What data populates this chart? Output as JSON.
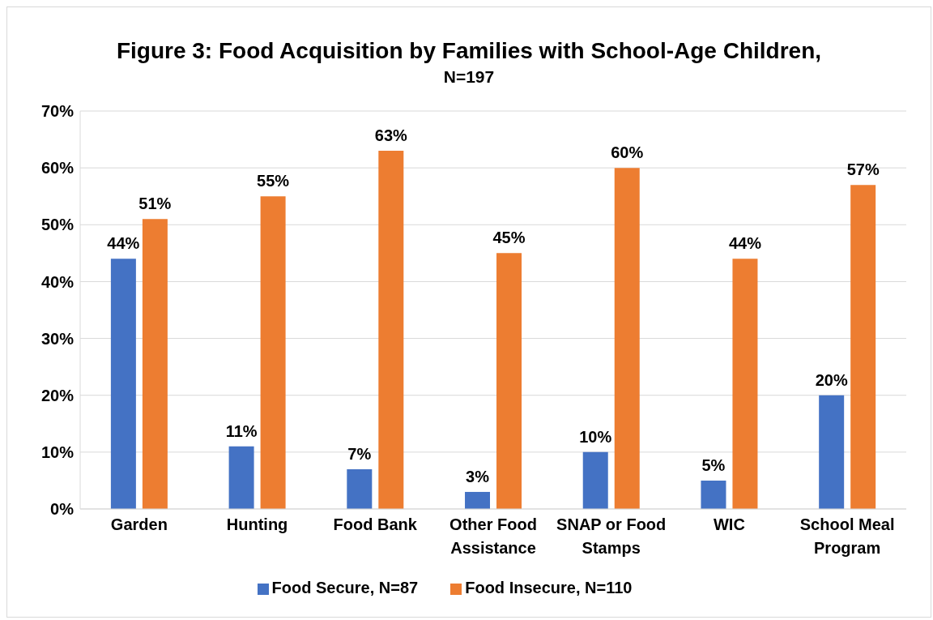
{
  "chart_data": {
    "type": "bar",
    "title": "Figure 3: Food Acquisition by Families with School-Age Children,",
    "subtitle": "N=197",
    "categories": [
      "Garden",
      "Hunting",
      "Food Bank",
      "Other Food Assistance",
      "SNAP or Food Stamps",
      "WIC",
      "School Meal Program"
    ],
    "series": [
      {
        "name": "Food Secure, N=87",
        "color": "#4472c4",
        "values": [
          44,
          11,
          7,
          3,
          10,
          5,
          20
        ],
        "value_labels": [
          "44%",
          "11%",
          "7%",
          "3%",
          "10%",
          "5%",
          "20%"
        ]
      },
      {
        "name": "Food Insecure, N=110",
        "color": "#ed7d31",
        "values": [
          51,
          55,
          63,
          45,
          60,
          44,
          57
        ],
        "value_labels": [
          "51%",
          "55%",
          "63%",
          "45%",
          "60%",
          "44%",
          "57%"
        ]
      }
    ],
    "ylim": [
      0,
      70
    ],
    "yticks": [
      {
        "value": 0,
        "label": "0%"
      },
      {
        "value": 10,
        "label": "10%"
      },
      {
        "value": 20,
        "label": "20%"
      },
      {
        "value": 30,
        "label": "30%"
      },
      {
        "value": 40,
        "label": "40%"
      },
      {
        "value": 50,
        "label": "50%"
      },
      {
        "value": 60,
        "label": "60%"
      },
      {
        "value": 70,
        "label": "70%"
      }
    ],
    "grid": "y",
    "legend": "bottom"
  }
}
